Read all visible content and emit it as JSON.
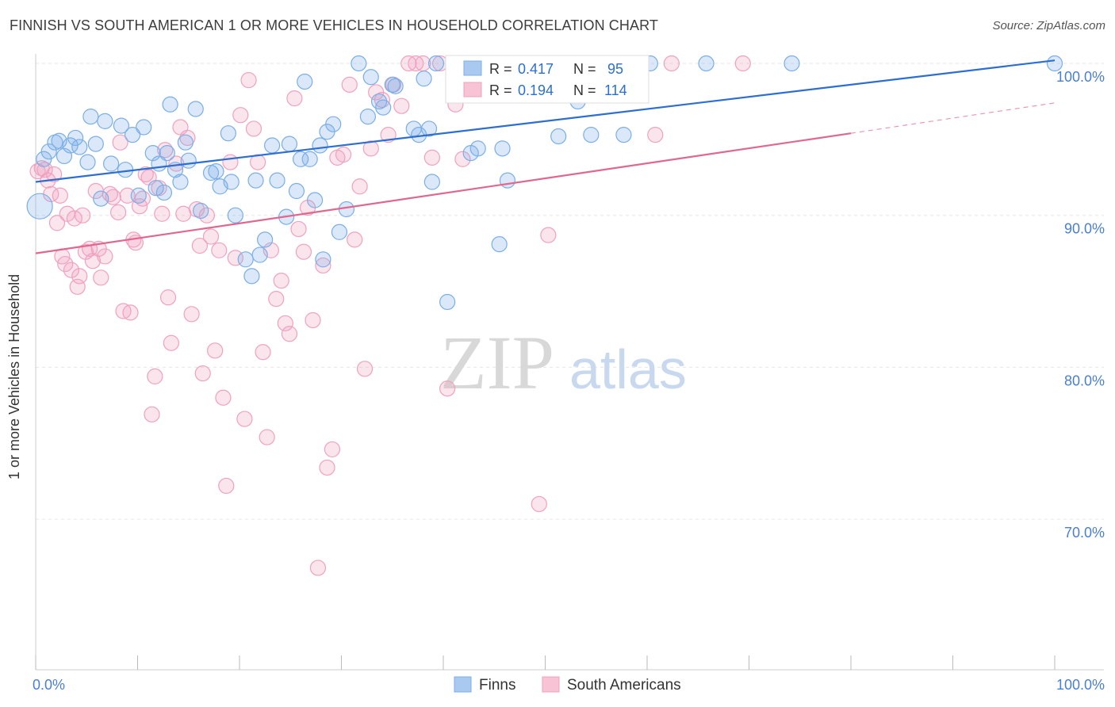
{
  "title": "FINNISH VS SOUTH AMERICAN 1 OR MORE VEHICLES IN HOUSEHOLD CORRELATION CHART",
  "source": "Source: ZipAtlas.com",
  "watermark": {
    "zip": "ZIP",
    "atlas": "atlas"
  },
  "chart_data": {
    "type": "scatter",
    "ylabel": "1 or more Vehicles in Household",
    "xlim": [
      0,
      100
    ],
    "ylim": [
      60,
      100
    ],
    "x_tick_labels": {
      "min": "0.0%",
      "max": "100.0%"
    },
    "y_ticks": [
      100,
      90,
      80,
      70
    ],
    "y_tick_labels": [
      "100.0%",
      "90.0%",
      "80.0%",
      "70.0%"
    ],
    "grid": true,
    "legend_position": "top-center",
    "series": [
      {
        "name": "Finns",
        "color": "#7aaee8",
        "line_color": "#2c6fd1",
        "R": "0.417",
        "N": "95",
        "trend": {
          "x0": 0,
          "y0": 92.2,
          "x1": 100,
          "y1": 100.2
        },
        "points": [
          [
            0.4,
            90.6
          ],
          [
            0.8,
            93.7
          ],
          [
            1.3,
            94.2
          ],
          [
            1.9,
            94.8
          ],
          [
            2.3,
            94.9
          ],
          [
            2.8,
            93.9
          ],
          [
            3.4,
            94.6
          ],
          [
            3.9,
            95.1
          ],
          [
            4.3,
            94.5
          ],
          [
            5.1,
            93.5
          ],
          [
            5.4,
            96.5
          ],
          [
            5.9,
            94.7
          ],
          [
            6.4,
            91.1
          ],
          [
            6.8,
            96.2
          ],
          [
            7.4,
            93.4
          ],
          [
            8.4,
            95.9
          ],
          [
            8.8,
            93.0
          ],
          [
            9.5,
            95.3
          ],
          [
            10.1,
            91.3
          ],
          [
            10.6,
            95.8
          ],
          [
            11.5,
            94.1
          ],
          [
            11.8,
            91.8
          ],
          [
            12.1,
            93.4
          ],
          [
            12.6,
            91.5
          ],
          [
            12.9,
            94.1
          ],
          [
            13.2,
            97.3
          ],
          [
            13.7,
            93.0
          ],
          [
            14.2,
            92.2
          ],
          [
            14.7,
            94.8
          ],
          [
            15.0,
            93.6
          ],
          [
            15.7,
            97.0
          ],
          [
            16.2,
            90.3
          ],
          [
            17.2,
            92.8
          ],
          [
            17.7,
            92.9
          ],
          [
            18.1,
            91.9
          ],
          [
            18.9,
            95.4
          ],
          [
            19.2,
            92.2
          ],
          [
            19.6,
            90.0
          ],
          [
            20.6,
            87.1
          ],
          [
            21.2,
            86.0
          ],
          [
            21.6,
            92.3
          ],
          [
            22.0,
            87.4
          ],
          [
            22.5,
            88.4
          ],
          [
            23.2,
            94.6
          ],
          [
            23.7,
            92.3
          ],
          [
            24.6,
            89.9
          ],
          [
            24.9,
            94.7
          ],
          [
            25.6,
            91.6
          ],
          [
            26.0,
            93.7
          ],
          [
            26.4,
            98.8
          ],
          [
            26.9,
            93.7
          ],
          [
            27.4,
            91.0
          ],
          [
            27.9,
            94.6
          ],
          [
            28.2,
            87.1
          ],
          [
            28.6,
            95.5
          ],
          [
            29.2,
            96.0
          ],
          [
            29.8,
            88.9
          ],
          [
            30.5,
            90.4
          ],
          [
            31.7,
            100.0
          ],
          [
            32.6,
            96.5
          ],
          [
            32.9,
            99.1
          ],
          [
            33.7,
            97.5
          ],
          [
            34.1,
            97.1
          ],
          [
            35.0,
            98.6
          ],
          [
            35.3,
            98.5
          ],
          [
            37.1,
            95.7
          ],
          [
            37.6,
            95.3
          ],
          [
            38.1,
            99.0
          ],
          [
            38.6,
            95.7
          ],
          [
            38.9,
            92.2
          ],
          [
            39.3,
            100.0
          ],
          [
            40.4,
            84.3
          ],
          [
            41.6,
            100.0
          ],
          [
            42.7,
            94.1
          ],
          [
            43.4,
            94.4
          ],
          [
            44.9,
            99.5
          ],
          [
            45.5,
            88.1
          ],
          [
            45.8,
            94.4
          ],
          [
            46.3,
            92.3
          ],
          [
            46.9,
            99.1
          ],
          [
            47.3,
            100.0
          ],
          [
            49.4,
            98.5
          ],
          [
            50.0,
            100.0
          ],
          [
            51.3,
            95.2
          ],
          [
            51.7,
            100.0
          ],
          [
            53.2,
            97.5
          ],
          [
            54.5,
            95.3
          ],
          [
            55.6,
            100.0
          ],
          [
            57.2,
            100.0
          ],
          [
            57.7,
            95.3
          ],
          [
            58.8,
            98.2
          ],
          [
            60.3,
            100.0
          ],
          [
            65.8,
            100.0
          ],
          [
            74.2,
            100.0
          ],
          [
            100.0,
            100.0
          ]
        ]
      },
      {
        "name": "South Americans",
        "color": "#f0a1be",
        "line_color": "#e0688f",
        "R": "0.194",
        "N": "114",
        "trend": {
          "x0": 0,
          "y0": 87.5,
          "x1": 80,
          "y1": 95.4
        },
        "trend_dashed_end": {
          "x": 100,
          "y": 97.4
        },
        "points": [
          [
            0.2,
            92.9
          ],
          [
            0.6,
            93.1
          ],
          [
            0.9,
            93.0
          ],
          [
            1.2,
            92.3
          ],
          [
            1.5,
            91.4
          ],
          [
            1.8,
            92.7
          ],
          [
            2.1,
            89.5
          ],
          [
            2.4,
            91.3
          ],
          [
            2.6,
            87.3
          ],
          [
            2.9,
            86.8
          ],
          [
            3.1,
            90.1
          ],
          [
            3.5,
            86.4
          ],
          [
            3.8,
            89.8
          ],
          [
            4.1,
            85.3
          ],
          [
            4.3,
            86.0
          ],
          [
            4.6,
            90.0
          ],
          [
            4.9,
            87.6
          ],
          [
            5.3,
            87.8
          ],
          [
            5.6,
            87.0
          ],
          [
            5.9,
            91.6
          ],
          [
            6.2,
            87.8
          ],
          [
            6.4,
            85.9
          ],
          [
            6.8,
            87.3
          ],
          [
            7.3,
            91.4
          ],
          [
            7.6,
            91.2
          ],
          [
            8.1,
            90.2
          ],
          [
            8.3,
            94.8
          ],
          [
            8.6,
            83.7
          ],
          [
            9.0,
            91.3
          ],
          [
            9.3,
            83.6
          ],
          [
            9.6,
            88.4
          ],
          [
            9.8,
            88.2
          ],
          [
            10.2,
            90.6
          ],
          [
            10.5,
            91.1
          ],
          [
            10.8,
            92.7
          ],
          [
            11.1,
            92.5
          ],
          [
            11.4,
            76.9
          ],
          [
            11.7,
            79.4
          ],
          [
            12.1,
            91.8
          ],
          [
            12.4,
            90.1
          ],
          [
            12.7,
            94.3
          ],
          [
            13.0,
            84.6
          ],
          [
            13.3,
            81.6
          ],
          [
            13.8,
            93.4
          ],
          [
            14.2,
            95.8
          ],
          [
            14.5,
            90.1
          ],
          [
            14.9,
            95.1
          ],
          [
            15.3,
            83.5
          ],
          [
            15.8,
            90.4
          ],
          [
            16.1,
            88.0
          ],
          [
            16.4,
            79.6
          ],
          [
            16.8,
            90.0
          ],
          [
            17.2,
            88.6
          ],
          [
            17.6,
            81.1
          ],
          [
            18.0,
            87.7
          ],
          [
            18.4,
            78.0
          ],
          [
            18.7,
            72.2
          ],
          [
            19.1,
            93.5
          ],
          [
            19.6,
            87.2
          ],
          [
            20.1,
            96.6
          ],
          [
            20.5,
            76.6
          ],
          [
            20.9,
            98.9
          ],
          [
            21.4,
            95.7
          ],
          [
            21.8,
            93.5
          ],
          [
            22.3,
            81.0
          ],
          [
            22.7,
            75.4
          ],
          [
            23.1,
            87.7
          ],
          [
            23.6,
            84.5
          ],
          [
            24.1,
            85.7
          ],
          [
            24.5,
            82.9
          ],
          [
            24.9,
            82.2
          ],
          [
            25.4,
            97.7
          ],
          [
            25.8,
            89.1
          ],
          [
            26.3,
            87.6
          ],
          [
            26.7,
            90.5
          ],
          [
            27.2,
            83.1
          ],
          [
            27.7,
            66.8
          ],
          [
            28.2,
            86.7
          ],
          [
            28.6,
            73.4
          ],
          [
            29.1,
            74.6
          ],
          [
            29.6,
            93.8
          ],
          [
            30.2,
            94.0
          ],
          [
            30.8,
            98.6
          ],
          [
            31.3,
            88.4
          ],
          [
            31.8,
            91.9
          ],
          [
            32.3,
            79.9
          ],
          [
            32.9,
            94.4
          ],
          [
            33.4,
            98.1
          ],
          [
            34.0,
            97.6
          ],
          [
            34.6,
            95.3
          ],
          [
            35.1,
            98.6
          ],
          [
            35.9,
            97.2
          ],
          [
            36.6,
            100.0
          ],
          [
            37.3,
            100.0
          ],
          [
            38.0,
            100.0
          ],
          [
            38.9,
            93.8
          ],
          [
            39.7,
            100.0
          ],
          [
            40.4,
            78.6
          ],
          [
            41.2,
            97.3
          ],
          [
            41.9,
            93.7
          ],
          [
            42.7,
            98.6
          ],
          [
            43.4,
            100.0
          ],
          [
            44.1,
            100.0
          ],
          [
            45.0,
            100.0
          ],
          [
            46.4,
            100.0
          ],
          [
            48.0,
            100.0
          ],
          [
            49.4,
            71.0
          ],
          [
            50.3,
            88.7
          ],
          [
            52.0,
            99.0
          ],
          [
            53.5,
            98.6
          ],
          [
            55.5,
            100.0
          ],
          [
            60.8,
            95.3
          ],
          [
            62.4,
            100.0
          ],
          [
            69.4,
            100.0
          ]
        ]
      }
    ]
  }
}
